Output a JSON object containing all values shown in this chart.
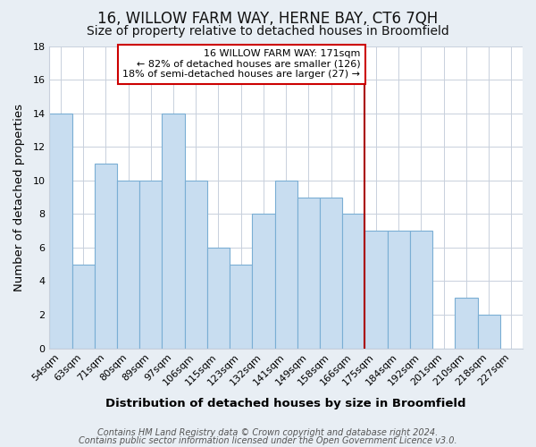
{
  "title": "16, WILLOW FARM WAY, HERNE BAY, CT6 7QH",
  "subtitle": "Size of property relative to detached houses in Broomfield",
  "xlabel": "Distribution of detached houses by size in Broomfield",
  "ylabel": "Number of detached properties",
  "footnote1": "Contains HM Land Registry data © Crown copyright and database right 2024.",
  "footnote2": "Contains public sector information licensed under the Open Government Licence v3.0.",
  "bar_labels": [
    "54sqm",
    "63sqm",
    "71sqm",
    "80sqm",
    "89sqm",
    "97sqm",
    "106sqm",
    "115sqm",
    "123sqm",
    "132sqm",
    "141sqm",
    "149sqm",
    "158sqm",
    "166sqm",
    "175sqm",
    "184sqm",
    "192sqm",
    "201sqm",
    "210sqm",
    "218sqm",
    "227sqm"
  ],
  "bar_values": [
    14,
    5,
    11,
    10,
    10,
    14,
    10,
    6,
    5,
    8,
    10,
    9,
    9,
    8,
    7,
    7,
    7,
    0,
    3,
    2,
    0
  ],
  "bar_color": "#c8ddf0",
  "bar_edge_color": "#7aaed4",
  "grid_color": "#c8d0dc",
  "plot_bg_color": "#ffffff",
  "outer_bg_color": "#e8eef4",
  "annotation_box_text": "16 WILLOW FARM WAY: 171sqm\n← 82% of detached houses are smaller (126)\n18% of semi-detached houses are larger (27) →",
  "annotation_box_edge_color": "#cc0000",
  "annotation_box_bg": "#ffffff",
  "vline_color": "#aa0000",
  "ylim": [
    0,
    18
  ],
  "yticks": [
    0,
    2,
    4,
    6,
    8,
    10,
    12,
    14,
    16,
    18
  ],
  "title_fontsize": 12,
  "subtitle_fontsize": 10,
  "axis_label_fontsize": 9.5,
  "tick_fontsize": 8,
  "annotation_fontsize": 8,
  "footnote_fontsize": 7
}
